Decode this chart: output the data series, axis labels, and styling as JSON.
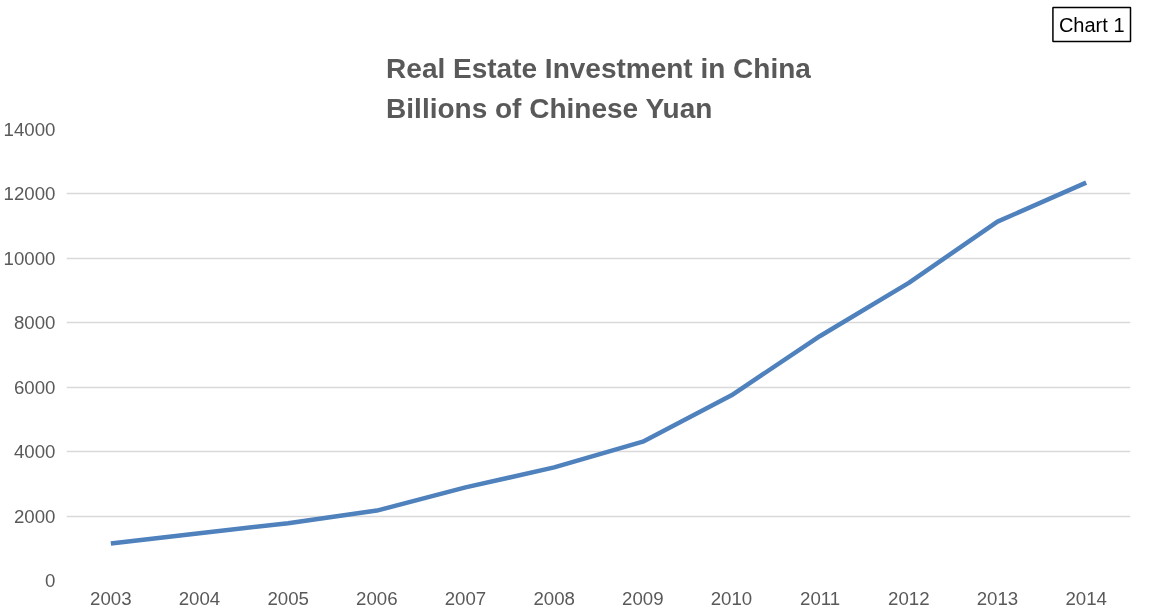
{
  "chart_data": {
    "type": "line",
    "title": "Real Estate Investment in China\nBillions of Chinese Yuan",
    "categories": [
      "2003",
      "2004",
      "2005",
      "2006",
      "2007",
      "2008",
      "2009",
      "2010",
      "2011",
      "2012",
      "2013",
      "2014"
    ],
    "series": [
      {
        "color": "#4f81bd",
        "values": [
          1150,
          1470,
          1780,
          2170,
          2890,
          3510,
          4310,
          5750,
          7590,
          9240,
          11140,
          12350
        ]
      }
    ],
    "ylim": [
      0,
      14000
    ],
    "yticks": [
      0,
      2000,
      4000,
      6000,
      8000,
      10000,
      12000,
      14000
    ],
    "grid": "y",
    "marker": "none",
    "line_style": "solid",
    "annotations": [
      "Chart 1"
    ]
  }
}
